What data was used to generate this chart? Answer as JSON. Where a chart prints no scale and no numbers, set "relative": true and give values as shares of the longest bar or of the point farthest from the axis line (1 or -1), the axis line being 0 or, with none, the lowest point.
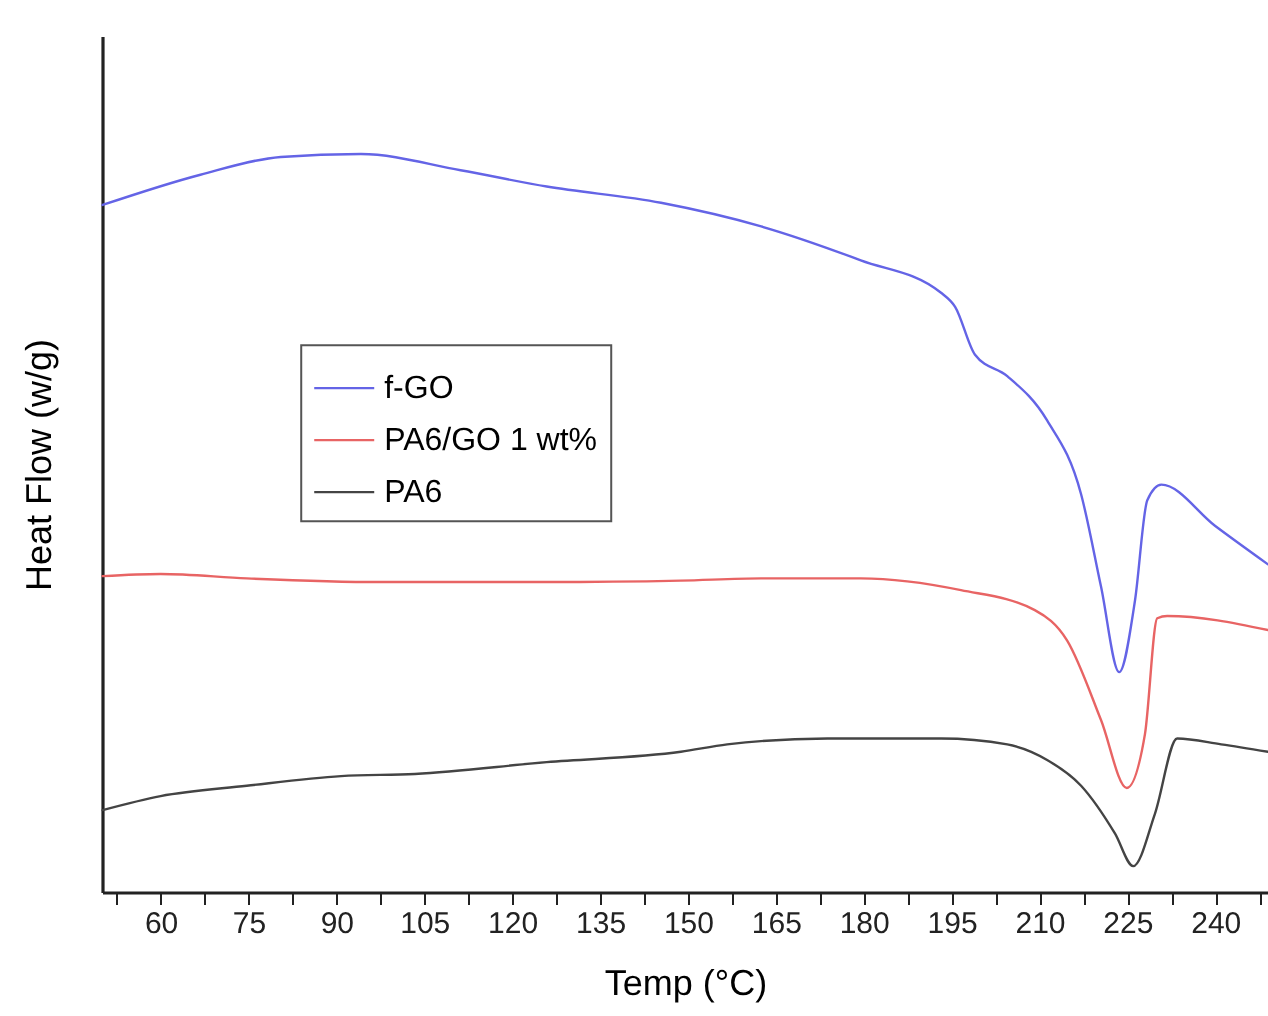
{
  "chart_data": {
    "type": "line",
    "xlabel": "Temp (°C)",
    "ylabel": "Heat Flow (w/g)",
    "relative": true,
    "legend": "left",
    "grid": false,
    "marker": "none",
    "line_style": "solid",
    "xlim": [
      50,
      249
    ],
    "xticks": [
      {
        "value": 52.5,
        "label": null
      },
      60,
      {
        "value": 67.5,
        "label": null
      },
      75,
      {
        "value": 82.5,
        "label": null
      },
      90,
      {
        "value": 97.5,
        "label": null
      },
      105,
      {
        "value": 112.5,
        "label": null
      },
      120,
      {
        "value": 127.5,
        "label": null
      },
      135,
      {
        "value": 142.5,
        "label": null
      },
      150,
      {
        "value": 157.5,
        "label": null
      },
      165,
      {
        "value": 172.5,
        "label": null
      },
      180,
      {
        "value": 187.5,
        "label": null
      },
      195,
      {
        "value": 202.5,
        "label": null
      },
      210,
      {
        "value": 217.5,
        "label": null
      },
      225,
      {
        "value": 232.5,
        "label": null
      },
      240,
      {
        "value": 247.5,
        "label": null
      }
    ],
    "series": [
      {
        "name": "f-GO",
        "color": "#6464e6",
        "x": [
          50.1,
          66.8,
          80.5,
          94.2,
          111.2,
          125.9,
          145.4,
          162.5,
          179.5,
          193.2,
          195.6,
          199.0,
          204.5,
          211.3,
          217.1,
          220.5,
          223.6,
          226.3,
          228.4,
          230.8,
          240.0,
          249.0
        ],
        "values": [
          0.931,
          0.972,
          0.996,
          1,
          0.978,
          0.956,
          0.934,
          0.902,
          0.856,
          0.812,
          0.793,
          0.728,
          0.699,
          0.639,
          0.539,
          0.414,
          0.298,
          0.395,
          0.531,
          0.552,
          0.496,
          0.444
        ]
      },
      {
        "name": "PA6/GO 1 wt%",
        "color": "#e86464",
        "x": [
          50.1,
          60.0,
          74.7,
          97.5,
          125.9,
          148.8,
          162.5,
          179.5,
          196.6,
          209.2,
          214.7,
          220.5,
          224.9,
          228.0,
          230.1,
          231.8,
          249.0
        ],
        "values": [
          0.428,
          0.431,
          0.425,
          0.42,
          0.42,
          0.422,
          0.425,
          0.425,
          0.409,
          0.382,
          0.341,
          0.233,
          0.141,
          0.214,
          0.371,
          0.374,
          0.355
        ]
      },
      {
        "name": "PA6",
        "color": "#444444",
        "x": [
          50.1,
          60.0,
          74.7,
          90.8,
          103.4,
          125.9,
          148.8,
          156.7,
          173.8,
          193.2,
          204.5,
          211.3,
          217.1,
          222.9,
          226.0,
          229.7,
          233.5,
          241.0,
          249.0
        ],
        "values": [
          0.111,
          0.13,
          0.144,
          0.157,
          0.16,
          0.176,
          0.19,
          0.2,
          0.208,
          0.208,
          0.2,
          0.179,
          0.144,
          0.079,
          0.035,
          0.106,
          0.208,
          0.2,
          0.19
        ]
      }
    ]
  }
}
